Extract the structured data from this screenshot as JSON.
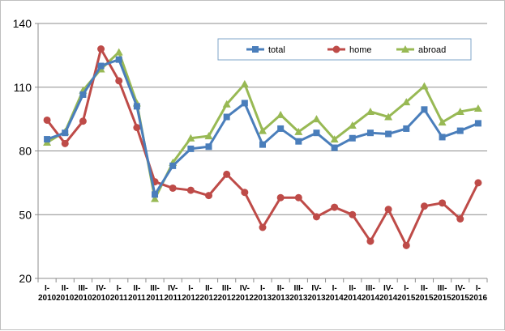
{
  "chart_data": {
    "type": "line",
    "title": "",
    "xlabel": "",
    "ylabel": "",
    "ylim": [
      20,
      140
    ],
    "yticks": [
      20,
      50,
      80,
      110,
      140
    ],
    "grid": "horizontal",
    "legend_position": "top-right",
    "categories": [
      [
        "I-",
        "2010"
      ],
      [
        "II-",
        "2010"
      ],
      [
        "III-",
        "2010"
      ],
      [
        "IV-",
        "2010"
      ],
      [
        "I-",
        "2011"
      ],
      [
        "II-",
        "2011"
      ],
      [
        "III-",
        "2011"
      ],
      [
        "IV-",
        "2011"
      ],
      [
        "I-",
        "2012"
      ],
      [
        "II-",
        "2012"
      ],
      [
        "III-",
        "2012"
      ],
      [
        "IV-",
        "2012"
      ],
      [
        "I-",
        "2013"
      ],
      [
        "II-",
        "2013"
      ],
      [
        "III-",
        "2013"
      ],
      [
        "IV-",
        "2013"
      ],
      [
        "I-",
        "2014"
      ],
      [
        "II-",
        "2014"
      ],
      [
        "III-",
        "2014"
      ],
      [
        "IV-",
        "2014"
      ],
      [
        "I-",
        "2015"
      ],
      [
        "II-",
        "2015"
      ],
      [
        "III-",
        "2015"
      ],
      [
        "IV-",
        "2015"
      ],
      [
        "I-",
        "2016"
      ]
    ],
    "series": [
      {
        "name": "total",
        "color": "#4a7ebb",
        "marker": "square",
        "values": [
          85.5,
          88.5,
          106.5,
          120,
          123,
          101,
          59.5,
          73,
          81,
          82,
          96,
          102.5,
          83,
          90.5,
          84.5,
          88.5,
          81.5,
          86,
          88.5,
          88,
          90.5,
          99.5,
          86.5,
          89.5,
          93
        ]
      },
      {
        "name": "home",
        "color": "#be4b48",
        "marker": "circle",
        "values": [
          94.5,
          83.5,
          94,
          128,
          113,
          91,
          65.5,
          62.5,
          61.5,
          59,
          69,
          60.5,
          44,
          58,
          58,
          49,
          53.5,
          50,
          37.5,
          52.5,
          35.5,
          54,
          55.5,
          48,
          65
        ]
      },
      {
        "name": "abroad",
        "color": "#98b954",
        "marker": "triangle",
        "values": [
          84,
          89,
          108.5,
          118.5,
          126.5,
          102.5,
          57.5,
          74.5,
          86,
          87,
          102,
          111.5,
          89.5,
          97,
          89,
          95,
          85.5,
          92,
          98.5,
          96,
          103,
          110.5,
          93.5,
          98.5,
          100
        ]
      }
    ]
  }
}
